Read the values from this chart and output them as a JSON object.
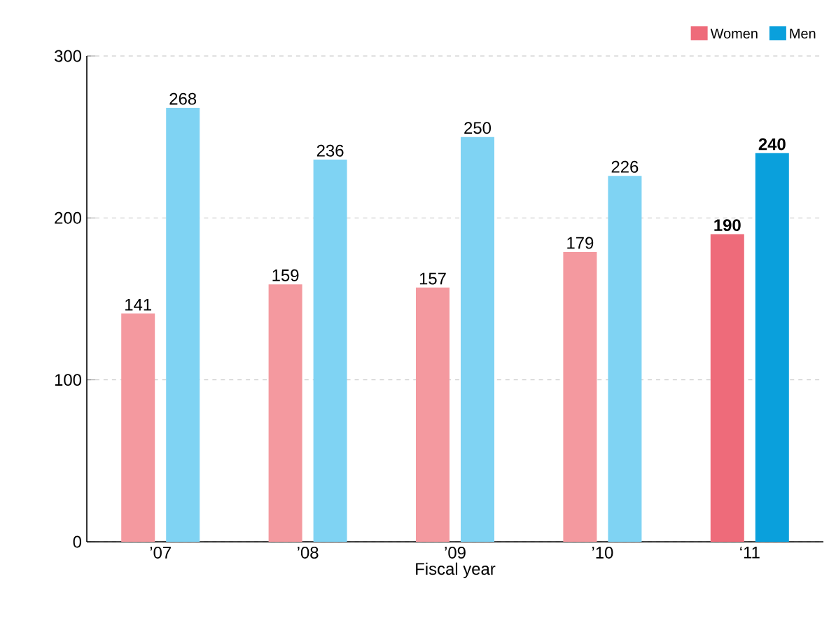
{
  "chart_data": {
    "type": "bar",
    "xlabel": "Fiscal year",
    "categories": [
      "’07",
      "’08",
      "’09",
      "’10",
      "‘11"
    ],
    "series": [
      {
        "name": "Women",
        "color": "#ee6b7a",
        "colors": [
          "#f4999f",
          "#f4999f",
          "#f4999f",
          "#f4999f",
          "#ee6b7a"
        ],
        "values": [
          141,
          159,
          157,
          179,
          190
        ]
      },
      {
        "name": "Men",
        "color": "#0aa0dc",
        "colors": [
          "#7fd3f3",
          "#7fd3f3",
          "#7fd3f3",
          "#7fd3f3",
          "#0aa0dc"
        ],
        "values": [
          268,
          236,
          250,
          226,
          240
        ]
      }
    ],
    "ylim": [
      0,
      300
    ],
    "yticks": [
      0,
      100,
      200,
      300
    ],
    "grid": "y",
    "legend": "top right",
    "data_labels": true
  }
}
